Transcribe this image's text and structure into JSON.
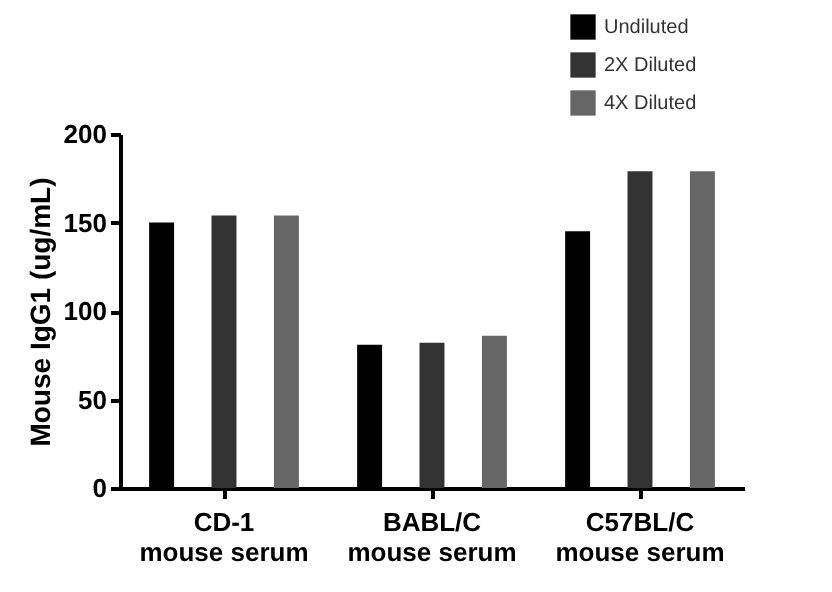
{
  "chart_data": {
    "type": "bar",
    "ylabel": "Mouse IgG1 (ug/mL)",
    "categories": [
      "CD-1\nmouse serum",
      "BABL/C\nmouse serum",
      "C57BL/C\nmouse serum"
    ],
    "series": [
      {
        "name": "Undiluted",
        "color": "#000000",
        "values": [
          150,
          81,
          145
        ]
      },
      {
        "name": "2X Diluted",
        "color": "#333333",
        "values": [
          154,
          82,
          179
        ]
      },
      {
        "name": "4X Diluted",
        "color": "#666666",
        "values": [
          154,
          86,
          179
        ]
      }
    ],
    "ylim": [
      0,
      200
    ],
    "yticks": [
      0,
      50,
      100,
      150,
      200
    ],
    "grid": false,
    "legend": "top right"
  }
}
